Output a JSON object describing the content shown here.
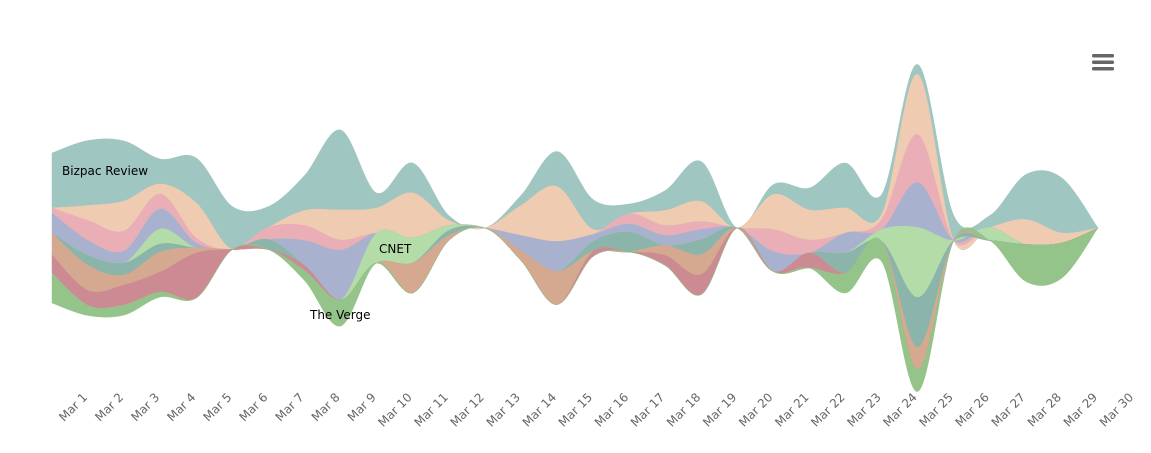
{
  "chart_data": {
    "type": "streamgraph",
    "categories": [
      null,
      "Mar 1",
      "Mar 2",
      "Mar 3",
      "Mar 4",
      "Mar 5",
      "Mar 6",
      "Mar 7",
      "Mar 8",
      "Mar 9",
      "Mar 10",
      "Mar 11",
      "Mar 12",
      "Mar 13",
      "Mar 14",
      "Mar 15",
      "Mar 16",
      "Mar 17",
      "Mar 18",
      "Mar 19",
      "Mar 20",
      "Mar 21",
      "Mar 22",
      "Mar 23",
      "Mar 24",
      "Mar 25",
      "Mar 26",
      "Mar 27",
      "Mar 28",
      "Mar 29",
      "Mar 30"
    ],
    "series": [
      {
        "name": "Bizpac Review",
        "color": "#9fc6c0",
        "values": [
          55,
          65,
          60,
          25,
          45,
          43,
          21,
          35,
          80,
          15,
          30,
          5,
          0,
          10,
          35,
          30,
          10,
          20,
          40,
          0,
          10,
          22,
          45,
          20,
          10,
          25,
          12,
          45,
          55,
          0,
          null
        ]
      },
      {
        "color": "#efcbb1",
        "values": [
          0,
          15,
          30,
          10,
          35,
          0,
          0,
          15,
          30,
          25,
          45,
          5,
          0,
          30,
          55,
          5,
          0,
          15,
          20,
          0,
          35,
          30,
          25,
          5,
          60,
          0,
          0,
          25,
          10,
          0,
          null
        ]
      },
      {
        "color": "#e9aeb6",
        "values": [
          5,
          20,
          20,
          15,
          5,
          0,
          12,
          15,
          10,
          0,
          0,
          0,
          0,
          0,
          0,
          0,
          10,
          10,
          8,
          0,
          22,
          13,
          0,
          10,
          48,
          0,
          0,
          0,
          0,
          0,
          null
        ]
      },
      {
        "color": "#a8b2cf",
        "values": [
          20,
          15,
          12,
          20,
          5,
          0,
          0,
          25,
          50,
          0,
          0,
          0,
          0,
          15,
          30,
          7,
          8,
          10,
          10,
          0,
          20,
          0,
          20,
          0,
          45,
          0,
          0,
          0,
          0,
          0,
          null
        ]
      },
      {
        "name": "CNET",
        "color": "#b3dca8",
        "values": [
          0,
          0,
          0,
          15,
          0,
          0,
          0,
          0,
          0,
          30,
          25,
          5,
          0,
          0,
          0,
          0,
          0,
          0,
          0,
          0,
          0,
          0,
          0,
          12,
          70,
          0,
          13,
          0,
          0,
          0,
          null
        ]
      },
      {
        "color": "#8bb4ab",
        "values": [
          0,
          10,
          12,
          8,
          0,
          0,
          10,
          0,
          0,
          0,
          0,
          5,
          0,
          0,
          0,
          10,
          20,
          0,
          15,
          0,
          0,
          0,
          20,
          0,
          50,
          0,
          0,
          0,
          0,
          0,
          null
        ]
      },
      {
        "color": "#d5a98f",
        "values": [
          22,
          25,
          10,
          20,
          5,
          0,
          0,
          0,
          0,
          0,
          30,
          5,
          0,
          10,
          33,
          0,
          0,
          10,
          20,
          0,
          0,
          0,
          0,
          0,
          22,
          0,
          0,
          0,
          0,
          0,
          null
        ]
      },
      {
        "color": "#cc8b93",
        "values": [
          18,
          15,
          20,
          20,
          45,
          0,
          0,
          5,
          0,
          0,
          0,
          0,
          0,
          0,
          0,
          5,
          0,
          10,
          20,
          0,
          0,
          15,
          0,
          0,
          0,
          0,
          0,
          0,
          0,
          0,
          null
        ]
      },
      {
        "name": "The Verge",
        "color": "#94c48a",
        "values": [
          30,
          10,
          10,
          5,
          0,
          0,
          0,
          10,
          26,
          0,
          0,
          0,
          0,
          0,
          0,
          0,
          0,
          0,
          0,
          0,
          0,
          0,
          20,
          20,
          22,
          0,
          0,
          37,
          35,
          0,
          null
        ]
      }
    ]
  }
}
